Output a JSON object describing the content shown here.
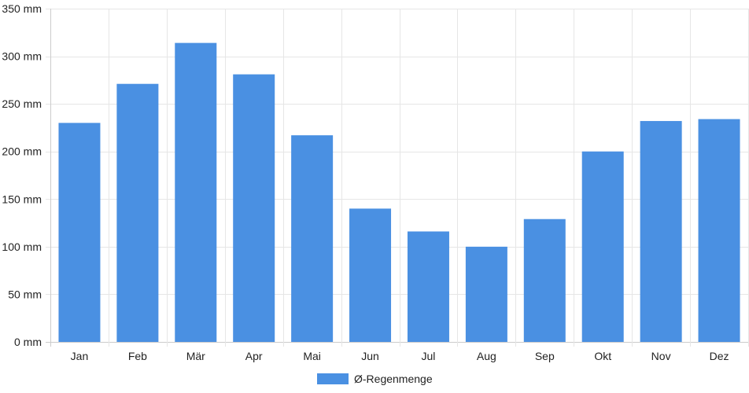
{
  "chart_data": {
    "type": "bar",
    "categories": [
      "Jan",
      "Feb",
      "Mär",
      "Apr",
      "Mai",
      "Jun",
      "Jul",
      "Aug",
      "Sep",
      "Okt",
      "Nov",
      "Dez"
    ],
    "series": [
      {
        "name": "Ø-Regenmenge",
        "values": [
          230,
          271,
          314,
          281,
          217,
          140,
          116,
          100,
          129,
          200,
          232,
          234
        ],
        "color": "#4a90e2"
      }
    ],
    "ylim": [
      0,
      350
    ],
    "yticks": [
      0,
      50,
      100,
      150,
      200,
      250,
      300,
      350
    ],
    "y_unit": "mm",
    "y_tick_labels": [
      "0 mm",
      "50 mm",
      "100 mm",
      "150 mm",
      "200 mm",
      "250 mm",
      "300 mm",
      "350 mm"
    ],
    "grid": true,
    "legend": "bottom-center",
    "colors": {
      "bar": "#4a90e2",
      "grid": "#e6e6e6",
      "axis": "#cccccc",
      "text": "#222222"
    }
  }
}
